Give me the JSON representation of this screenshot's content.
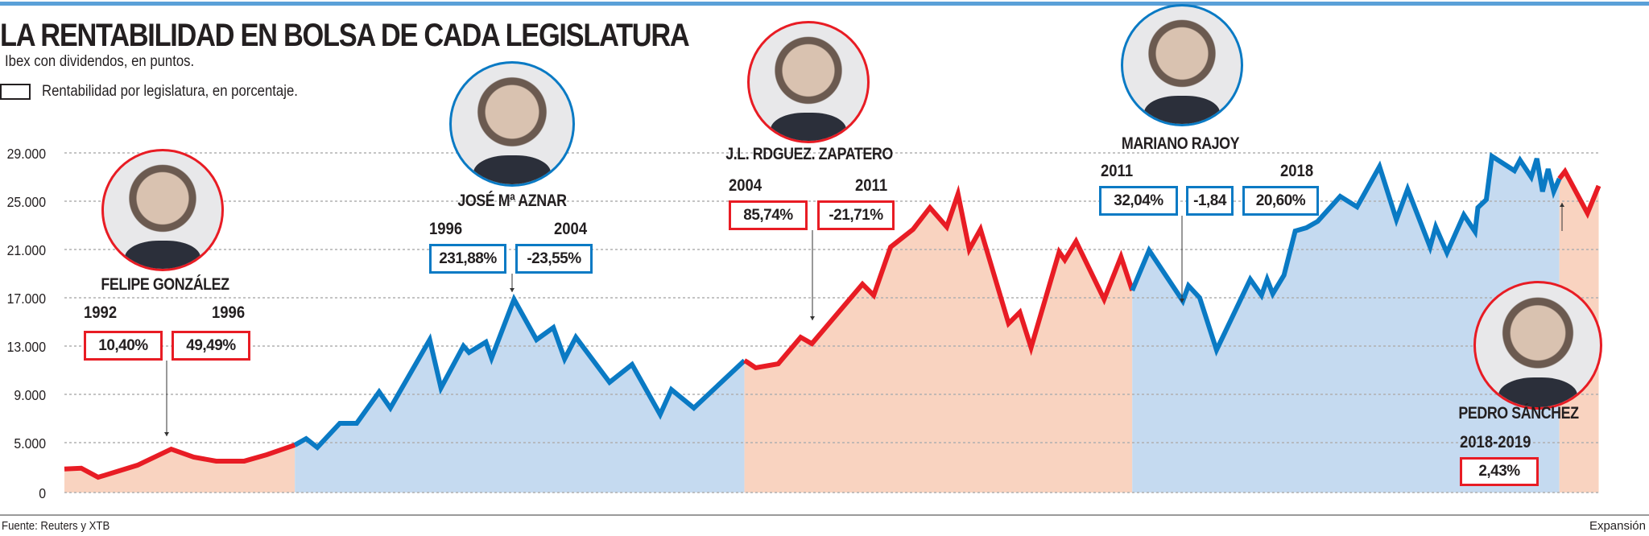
{
  "header": {
    "title": "LA RENTABILIDAD EN BOLSA DE CADA LEGISLATURA",
    "subtitle": "Ibex con dividendos, en puntos.",
    "legend": "Rentabilidad por legislatura, en porcentaje."
  },
  "footer": {
    "source": "Fuente: Reuters y XTB",
    "brand": "Expansión"
  },
  "colors": {
    "red_line": "#e81c24",
    "blue_line": "#0a7ac4",
    "red_fill": "#f9d3c0",
    "blue_fill": "#c5daf0",
    "grid": "#b0b0b0"
  },
  "annotations": {
    "gonzalez": {
      "name": "FELIPE GONZÁLEZ",
      "year_start": "1992",
      "year_end": "1996",
      "box1": "10,40%",
      "box2": "49,49%"
    },
    "aznar": {
      "name": "JOSÉ Mª AZNAR",
      "year_start": "1996",
      "year_end": "2004",
      "box1": "231,88%",
      "box2": "-23,55%"
    },
    "zapatero": {
      "name": "J.L. RDGUEZ. ZAPATERO",
      "year_start": "2004",
      "year_end": "2011",
      "box1": "85,74%",
      "box2": "-21,71%"
    },
    "rajoy": {
      "name": "MARIANO RAJOY",
      "year_start": "2011",
      "year_end": "2018",
      "box1": "32,04%",
      "box2": "-1,84",
      "box3": "20,60%"
    },
    "sanchez": {
      "name": "PEDRO SÁNCHEZ",
      "years": "2018-2019",
      "box1": "2,43%"
    }
  },
  "chart_data": {
    "type": "area",
    "title": "LA RENTABILIDAD EN BOLSA DE CADA LEGISLATURA",
    "ylabel": "Ibex con dividendos, en puntos.",
    "yticks": [
      0,
      5000,
      9000,
      13000,
      17000,
      21000,
      25000,
      29000
    ],
    "ytick_labels": [
      "0",
      "5.000",
      "9.000",
      "13.000",
      "17.000",
      "21.000",
      "25.000",
      "29.000"
    ],
    "grid": true,
    "series": [
      {
        "name": "FELIPE GONZÁLEZ",
        "color": "red",
        "points": [
          [
            1992.0,
            2360
          ],
          [
            1992.3,
            2440
          ],
          [
            1992.6,
            1530
          ],
          [
            1993.3,
            2740
          ],
          [
            1993.9,
            4350
          ],
          [
            1994.3,
            3550
          ],
          [
            1994.7,
            3150
          ],
          [
            1995.2,
            3150
          ],
          [
            1995.6,
            3790
          ],
          [
            1996.1,
            4760
          ]
        ]
      },
      {
        "name": "JOSÉ Mª AZNAR",
        "color": "blue",
        "points": [
          [
            1996.1,
            4760
          ],
          [
            1996.3,
            5330
          ],
          [
            1996.5,
            4520
          ],
          [
            1996.9,
            6600
          ],
          [
            1997.2,
            6600
          ],
          [
            1997.6,
            9200
          ],
          [
            1997.8,
            7870
          ],
          [
            1998.5,
            13530
          ],
          [
            1998.7,
            9530
          ],
          [
            1999.1,
            13000
          ],
          [
            1999.2,
            12470
          ],
          [
            1999.5,
            13330
          ],
          [
            1999.6,
            12000
          ],
          [
            2000.0,
            16870
          ],
          [
            2000.4,
            13530
          ],
          [
            2000.7,
            14530
          ],
          [
            2000.9,
            11930
          ],
          [
            2001.1,
            13730
          ],
          [
            2001.7,
            10000
          ],
          [
            2002.1,
            11470
          ],
          [
            2002.6,
            7330
          ],
          [
            2002.8,
            9400
          ],
          [
            2003.2,
            7870
          ],
          [
            2004.1,
            11800
          ]
        ]
      },
      {
        "name": "J.L. RDGUEZ. ZAPATERO",
        "color": "red",
        "points": [
          [
            2004.1,
            11800
          ],
          [
            2004.15,
            11670
          ],
          [
            2004.3,
            11200
          ],
          [
            2004.7,
            11530
          ],
          [
            2005.1,
            13730
          ],
          [
            2005.3,
            13200
          ],
          [
            2006.2,
            18130
          ],
          [
            2006.4,
            17200
          ],
          [
            2006.7,
            21200
          ],
          [
            2007.1,
            22670
          ],
          [
            2007.4,
            24470
          ],
          [
            2007.7,
            22870
          ],
          [
            2007.9,
            25600
          ],
          [
            2008.1,
            21000
          ],
          [
            2008.3,
            22670
          ],
          [
            2008.8,
            14870
          ],
          [
            2009.0,
            15800
          ],
          [
            2009.2,
            12870
          ],
          [
            2009.7,
            20800
          ],
          [
            2009.8,
            20130
          ],
          [
            2010.0,
            21670
          ],
          [
            2010.5,
            16870
          ],
          [
            2010.8,
            20400
          ],
          [
            2011.0,
            17600
          ]
        ]
      },
      {
        "name": "MARIANO RAJOY",
        "color": "blue",
        "points": [
          [
            2011.0,
            17600
          ],
          [
            2011.3,
            20930
          ],
          [
            2011.9,
            16730
          ],
          [
            2012.0,
            18000
          ],
          [
            2012.2,
            17000
          ],
          [
            2012.5,
            12670
          ],
          [
            2013.1,
            18530
          ],
          [
            2013.3,
            17200
          ],
          [
            2013.4,
            18530
          ],
          [
            2013.5,
            17330
          ],
          [
            2013.7,
            18870
          ],
          [
            2013.9,
            22530
          ],
          [
            2014.1,
            22800
          ],
          [
            2014.3,
            23330
          ],
          [
            2014.7,
            25400
          ],
          [
            2015.0,
            24530
          ],
          [
            2015.4,
            27870
          ],
          [
            2015.7,
            23470
          ],
          [
            2015.9,
            26000
          ],
          [
            2016.3,
            21200
          ],
          [
            2016.4,
            22870
          ],
          [
            2016.6,
            20730
          ],
          [
            2016.9,
            23870
          ],
          [
            2017.1,
            22470
          ],
          [
            2017.15,
            24470
          ],
          [
            2017.3,
            25130
          ],
          [
            2017.4,
            28730
          ],
          [
            2017.8,
            27530
          ],
          [
            2017.9,
            28400
          ],
          [
            2018.1,
            27000
          ],
          [
            2018.2,
            28530
          ],
          [
            2018.3,
            25800
          ],
          [
            2018.4,
            27670
          ],
          [
            2018.5,
            25800
          ],
          [
            2018.6,
            26870
          ]
        ]
      },
      {
        "name": "PEDRO SÁNCHEZ",
        "color": "red",
        "points": [
          [
            2018.6,
            26870
          ],
          [
            2018.7,
            27470
          ],
          [
            2019.1,
            24000
          ],
          [
            2019.3,
            26270
          ]
        ]
      }
    ]
  }
}
